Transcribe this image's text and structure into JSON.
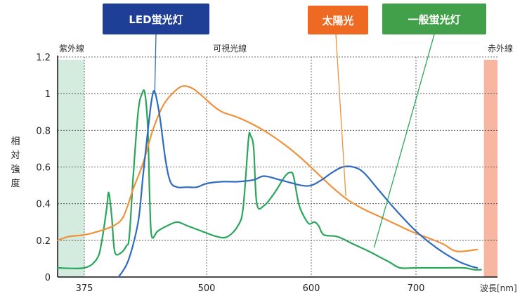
{
  "chart_data": {
    "type": "line",
    "xlabel": "波長[nm]",
    "ylabel": "相対強度",
    "xlim": [
      350,
      760
    ],
    "ylim": [
      0,
      1.2
    ],
    "x_ticks": [
      375,
      500,
      600,
      700
    ],
    "y_ticks": [
      0,
      0.2,
      0.4,
      0.6,
      0.8,
      1,
      1.2
    ],
    "y_tick_labels": [
      "0",
      "0.2",
      "0.4",
      "0.6",
      "0.8",
      "1",
      "1.2"
    ],
    "grid": true,
    "regions": [
      {
        "label": "紫外線",
        "from": 350,
        "to": 375,
        "color": "#d4ebe0"
      },
      {
        "label": "可視光線",
        "from": 375,
        "to": 750,
        "color": "none"
      },
      {
        "label": "赤外線",
        "from": 750,
        "to": 760,
        "color": "#f7b6a0"
      }
    ],
    "series": [
      {
        "name": "LED蛍光灯",
        "color": "#2f6bbf",
        "label_bg": "#1f3f96",
        "points": [
          [
            410,
            0
          ],
          [
            420,
            0.09
          ],
          [
            430,
            0.3
          ],
          [
            435,
            0.55
          ],
          [
            440,
            0.8
          ],
          [
            444,
            0.97
          ],
          [
            447,
            1.01
          ],
          [
            452,
            0.88
          ],
          [
            458,
            0.64
          ],
          [
            463,
            0.52
          ],
          [
            470,
            0.49
          ],
          [
            480,
            0.49
          ],
          [
            490,
            0.49
          ],
          [
            500,
            0.51
          ],
          [
            515,
            0.52
          ],
          [
            530,
            0.52
          ],
          [
            545,
            0.53
          ],
          [
            555,
            0.55
          ],
          [
            570,
            0.53
          ],
          [
            590,
            0.5
          ],
          [
            600,
            0.5
          ],
          [
            610,
            0.53
          ],
          [
            620,
            0.57
          ],
          [
            630,
            0.6
          ],
          [
            640,
            0.6
          ],
          [
            650,
            0.57
          ],
          [
            665,
            0.47
          ],
          [
            680,
            0.37
          ],
          [
            700,
            0.25
          ],
          [
            715,
            0.16
          ],
          [
            730,
            0.09
          ],
          [
            740,
            0.06
          ],
          [
            745,
            0.05
          ]
        ]
      },
      {
        "name": "太陽光",
        "color": "#f0913c",
        "label_bg": "#ee6a22",
        "points": [
          [
            350,
            0.2
          ],
          [
            360,
            0.22
          ],
          [
            375,
            0.23
          ],
          [
            390,
            0.25
          ],
          [
            405,
            0.28
          ],
          [
            415,
            0.33
          ],
          [
            425,
            0.48
          ],
          [
            435,
            0.62
          ],
          [
            445,
            0.8
          ],
          [
            455,
            0.93
          ],
          [
            465,
            1.0
          ],
          [
            475,
            1.04
          ],
          [
            485,
            1.03
          ],
          [
            495,
            0.99
          ],
          [
            505,
            0.94
          ],
          [
            515,
            0.9
          ],
          [
            530,
            0.87
          ],
          [
            545,
            0.83
          ],
          [
            560,
            0.78
          ],
          [
            575,
            0.72
          ],
          [
            590,
            0.65
          ],
          [
            605,
            0.57
          ],
          [
            620,
            0.49
          ],
          [
            635,
            0.42
          ],
          [
            650,
            0.37
          ],
          [
            665,
            0.33
          ],
          [
            680,
            0.29
          ],
          [
            695,
            0.25
          ],
          [
            710,
            0.21
          ],
          [
            720,
            0.18
          ],
          [
            730,
            0.14
          ],
          [
            745,
            0.15
          ]
        ]
      },
      {
        "name": "一般蛍光灯",
        "color": "#2aa65a",
        "label_bg": "#42a04a",
        "points": [
          [
            350,
            0.05
          ],
          [
            375,
            0.05
          ],
          [
            388,
            0.1
          ],
          [
            393,
            0.2
          ],
          [
            398,
            0.38
          ],
          [
            400,
            0.46
          ],
          [
            403,
            0.33
          ],
          [
            406,
            0.14
          ],
          [
            412,
            0.13
          ],
          [
            418,
            0.17
          ],
          [
            421,
            0.22
          ],
          [
            425,
            0.55
          ],
          [
            430,
            0.9
          ],
          [
            434,
            1.0
          ],
          [
            437,
            1.0
          ],
          [
            440,
            0.8
          ],
          [
            442,
            0.4
          ],
          [
            444,
            0.22
          ],
          [
            450,
            0.25
          ],
          [
            460,
            0.28
          ],
          [
            470,
            0.3
          ],
          [
            480,
            0.28
          ],
          [
            495,
            0.25
          ],
          [
            510,
            0.22
          ],
          [
            520,
            0.22
          ],
          [
            530,
            0.28
          ],
          [
            535,
            0.38
          ],
          [
            540,
            0.75
          ],
          [
            542,
            0.77
          ],
          [
            545,
            0.7
          ],
          [
            548,
            0.4
          ],
          [
            555,
            0.39
          ],
          [
            565,
            0.46
          ],
          [
            575,
            0.55
          ],
          [
            580,
            0.57
          ],
          [
            583,
            0.55
          ],
          [
            588,
            0.4
          ],
          [
            593,
            0.33
          ],
          [
            598,
            0.29
          ],
          [
            603,
            0.3
          ],
          [
            607,
            0.28
          ],
          [
            612,
            0.23
          ],
          [
            625,
            0.22
          ],
          [
            640,
            0.18
          ],
          [
            655,
            0.14
          ],
          [
            665,
            0.11
          ],
          [
            675,
            0.08
          ],
          [
            685,
            0.05
          ],
          [
            700,
            0.05
          ],
          [
            720,
            0.05
          ],
          [
            735,
            0.05
          ],
          [
            743,
            0.04
          ],
          [
            748,
            0.04
          ]
        ]
      }
    ]
  }
}
